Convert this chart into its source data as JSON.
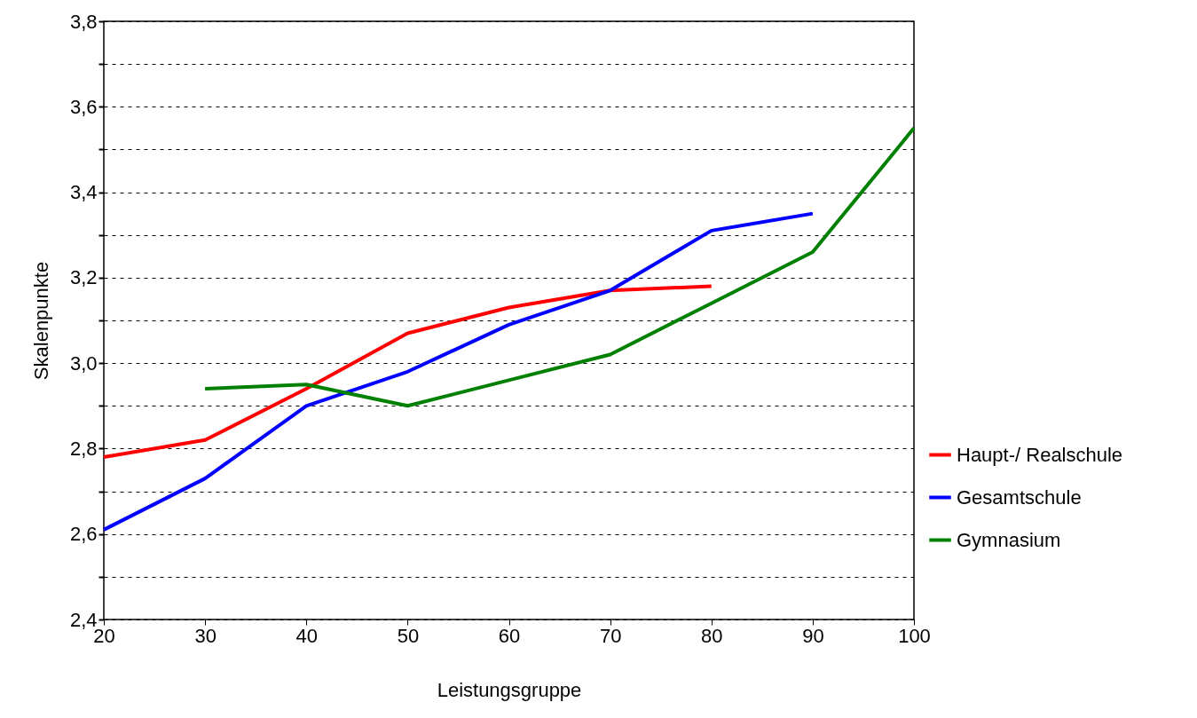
{
  "chart_data": {
    "type": "line",
    "xlabel": "Leistungsgruppe",
    "ylabel": "Skalenpunkte",
    "x": [
      20,
      30,
      40,
      50,
      60,
      70,
      80,
      90,
      100
    ],
    "series": [
      {
        "name": "Haupt-/ Realschule",
        "color": "#ff0000",
        "values": [
          2.78,
          2.82,
          2.94,
          3.07,
          3.13,
          3.17,
          3.18,
          null,
          null
        ]
      },
      {
        "name": "Gesamtschule",
        "color": "#0000ff",
        "values": [
          2.61,
          2.73,
          2.9,
          2.98,
          3.09,
          3.17,
          3.31,
          3.35,
          null
        ]
      },
      {
        "name": "Gymnasium",
        "color": "#008000",
        "values": [
          null,
          2.94,
          2.95,
          2.9,
          2.96,
          3.02,
          3.14,
          3.26,
          3.55
        ]
      }
    ],
    "xlim": [
      20,
      100
    ],
    "xticks": [
      20,
      30,
      40,
      50,
      60,
      70,
      80,
      90,
      100
    ],
    "ylim": [
      2.4,
      3.8
    ],
    "yticks": [
      {
        "value": 2.4,
        "label": "2,4"
      },
      {
        "value": 2.5,
        "label": null
      },
      {
        "value": 2.6,
        "label": "2,6"
      },
      {
        "value": 2.7,
        "label": null
      },
      {
        "value": 2.8,
        "label": "2,8"
      },
      {
        "value": 2.9,
        "label": null
      },
      {
        "value": 3.0,
        "label": "3,0"
      },
      {
        "value": 3.1,
        "label": null
      },
      {
        "value": 3.2,
        "label": "3,2"
      },
      {
        "value": 3.3,
        "label": null
      },
      {
        "value": 3.4,
        "label": "3,4"
      },
      {
        "value": 3.5,
        "label": null
      },
      {
        "value": 3.6,
        "label": "3,6"
      },
      {
        "value": 3.7,
        "label": null
      },
      {
        "value": 3.8,
        "label": "3,8"
      }
    ],
    "grid": "y",
    "legend": "bottom right",
    "line_style": "solid",
    "marker": "none"
  }
}
